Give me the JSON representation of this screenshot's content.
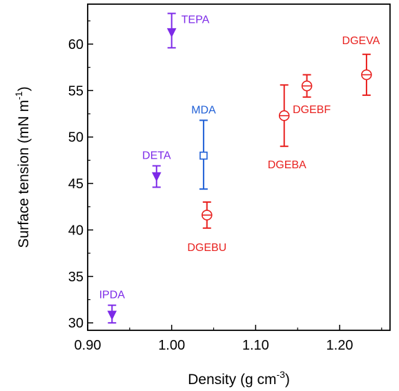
{
  "chart_data": {
    "type": "scatter",
    "xlabel": {
      "text": "Density (g cm",
      "sup": "-3",
      "suffix": ")"
    },
    "ylabel": {
      "text": "Surface tension (mN m",
      "sup": "-1",
      "suffix": ")"
    },
    "xlim": [
      0.9,
      1.26
    ],
    "ylim": [
      29.2,
      64.3
    ],
    "x_ticks": [
      0.9,
      1.0,
      1.1,
      1.2
    ],
    "x_tick_labels": [
      "0.90",
      "1.00",
      "1.10",
      "1.20"
    ],
    "y_ticks": [
      30,
      35,
      40,
      45,
      50,
      55,
      60
    ],
    "y_tick_labels": [
      "30",
      "35",
      "40",
      "45",
      "50",
      "55",
      "60"
    ],
    "grid": false,
    "colors": {
      "purple": "#7d2ae8",
      "blue": "#1f5fd6",
      "red": "#e8201e"
    },
    "points": [
      {
        "label": "TEPA",
        "x": 1.0,
        "y": 61.3,
        "err_low": 59.6,
        "err_high": 63.3,
        "marker": "triangle-down",
        "color": "#7d2ae8",
        "label_pos": "right"
      },
      {
        "label": "DETA",
        "x": 0.982,
        "y": 45.8,
        "err_low": 44.6,
        "err_high": 46.9,
        "marker": "triangle-down",
        "color": "#7d2ae8",
        "label_pos": "above"
      },
      {
        "label": "IPDA",
        "x": 0.929,
        "y": 30.9,
        "err_low": 30.0,
        "err_high": 31.9,
        "marker": "triangle-down",
        "color": "#7d2ae8",
        "label_pos": "above"
      },
      {
        "label": "MDA",
        "x": 1.038,
        "y": 48.0,
        "err_low": 44.4,
        "err_high": 51.8,
        "marker": "square",
        "color": "#1f5fd6",
        "label_pos": "above"
      },
      {
        "label": "DGEBU",
        "x": 1.042,
        "y": 41.6,
        "err_low": 40.2,
        "err_high": 43.0,
        "marker": "circle",
        "color": "#e8201e",
        "label_pos": "below"
      },
      {
        "label": "DGEBA",
        "x": 1.134,
        "y": 52.3,
        "err_low": 49.0,
        "err_high": 55.6,
        "marker": "circle",
        "color": "#e8201e",
        "label_pos": "below"
      },
      {
        "label": "DGEBF",
        "x": 1.161,
        "y": 55.5,
        "err_low": 54.3,
        "err_high": 56.7,
        "marker": "circle",
        "color": "#e8201e",
        "label_pos": "below"
      },
      {
        "label": "DGEVA",
        "x": 1.232,
        "y": 56.7,
        "err_low": 54.5,
        "err_high": 58.9,
        "marker": "circle",
        "color": "#e8201e",
        "label_pos": "above"
      }
    ]
  }
}
